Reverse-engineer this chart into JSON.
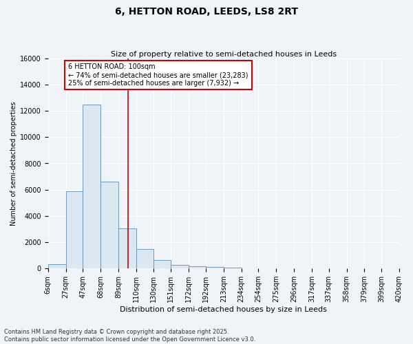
{
  "title": "6, HETTON ROAD, LEEDS, LS8 2RT",
  "subtitle": "Size of property relative to semi-detached houses in Leeds",
  "xlabel": "Distribution of semi-detached houses by size in Leeds",
  "ylabel": "Number of semi-detached properties",
  "bar_color": "#dce8f0",
  "bar_edge_color": "#5b8db8",
  "bins": [
    6,
    27,
    47,
    68,
    89,
    110,
    130,
    151,
    172,
    192,
    213,
    234,
    254,
    275,
    296,
    317,
    337,
    358,
    379,
    399,
    420
  ],
  "bin_labels": [
    "6sqm",
    "27sqm",
    "47sqm",
    "68sqm",
    "89sqm",
    "110sqm",
    "130sqm",
    "151sqm",
    "172sqm",
    "192sqm",
    "213sqm",
    "234sqm",
    "254sqm",
    "275sqm",
    "296sqm",
    "317sqm",
    "337sqm",
    "358sqm",
    "379sqm",
    "399sqm",
    "420sqm"
  ],
  "counts": [
    300,
    5900,
    12500,
    6600,
    3050,
    1500,
    620,
    290,
    180,
    110,
    70,
    30,
    20,
    0,
    0,
    0,
    0,
    0,
    0,
    0
  ],
  "vline_x": 100,
  "annotation_title": "6 HETTON ROAD: 100sqm",
  "annotation_line1": "← 74% of semi-detached houses are smaller (23,283)",
  "annotation_line2": "25% of semi-detached houses are larger (7,932) →",
  "ylim": [
    0,
    16000
  ],
  "yticks": [
    0,
    2000,
    4000,
    6000,
    8000,
    10000,
    12000,
    14000,
    16000
  ],
  "footer1": "Contains HM Land Registry data © Crown copyright and database right 2025.",
  "footer2": "Contains public sector information licensed under the Open Government Licence v3.0.",
  "bg_color": "#f0f4f8",
  "annotation_box_color": "#ffffff",
  "annotation_box_edge": "#cc0000",
  "vline_color": "#cc0000",
  "title_fontsize": 10,
  "subtitle_fontsize": 8,
  "ylabel_fontsize": 7,
  "xlabel_fontsize": 8,
  "tick_fontsize": 7,
  "annotation_fontsize": 7,
  "footer_fontsize": 6
}
